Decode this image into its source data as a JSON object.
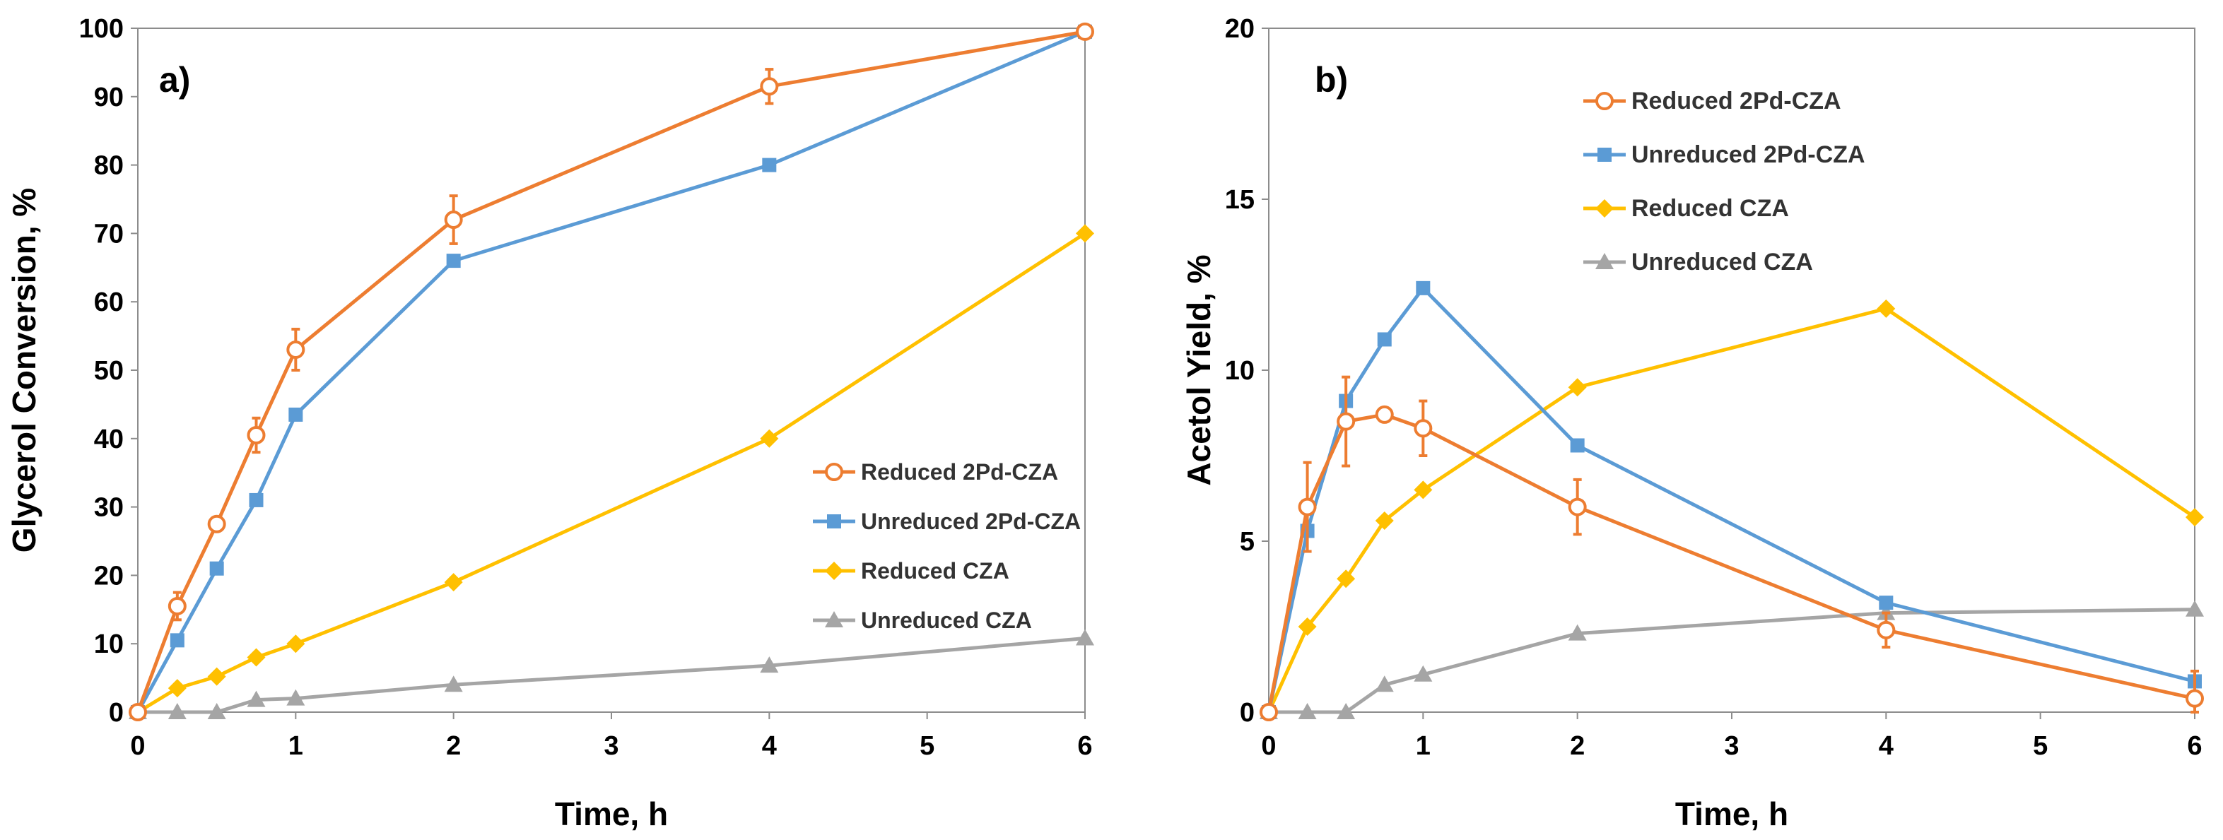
{
  "chart_data": [
    {
      "type": "line",
      "panel_label": "a)",
      "xlabel": "Time, h",
      "ylabel": "Glycerol Conversion, %",
      "xlim": [
        0,
        6
      ],
      "ylim": [
        0,
        100
      ],
      "xticks": [
        0,
        1,
        2,
        3,
        4,
        5,
        6
      ],
      "yticks": [
        0,
        10,
        20,
        30,
        40,
        50,
        60,
        70,
        80,
        90,
        100
      ],
      "grid": false,
      "legend_position": "bottom-right",
      "series": [
        {
          "name": "Reduced 2Pd-CZA",
          "color": "#ED7D31",
          "marker": "open-circle",
          "x": [
            0,
            0.25,
            0.5,
            0.75,
            1,
            2,
            4,
            6
          ],
          "y": [
            0,
            15.5,
            27.5,
            40.5,
            53,
            72,
            91.5,
            99.5
          ],
          "err": [
            0,
            2,
            1,
            2.5,
            3,
            3.5,
            2.5,
            0
          ]
        },
        {
          "name": "Unreduced 2Pd-CZA",
          "color": "#5B9BD5",
          "marker": "square",
          "x": [
            0,
            0.25,
            0.5,
            0.75,
            1,
            2,
            4,
            6
          ],
          "y": [
            0,
            10.5,
            21,
            31,
            43.5,
            66,
            80,
            99.5
          ]
        },
        {
          "name": "Reduced CZA",
          "color": "#FFC000",
          "marker": "diamond",
          "x": [
            0,
            0.25,
            0.5,
            0.75,
            1,
            2,
            4,
            6
          ],
          "y": [
            0,
            3.5,
            5.2,
            8,
            10,
            19,
            40,
            70
          ]
        },
        {
          "name": "Unreduced CZA",
          "color": "#A5A5A5",
          "marker": "triangle",
          "x": [
            0,
            0.25,
            0.5,
            0.75,
            1,
            2,
            4,
            6
          ],
          "y": [
            0,
            0,
            0,
            1.8,
            2,
            4,
            6.8,
            10.8
          ]
        }
      ]
    },
    {
      "type": "line",
      "panel_label": "b)",
      "xlabel": "Time, h",
      "ylabel": "Acetol Yield, %",
      "xlim": [
        0,
        6
      ],
      "ylim": [
        0,
        20
      ],
      "xticks": [
        0,
        1,
        2,
        3,
        4,
        5,
        6
      ],
      "yticks": [
        0,
        5,
        10,
        15,
        20
      ],
      "grid": false,
      "legend_position": "top-center",
      "series": [
        {
          "name": "Reduced 2Pd-CZA",
          "color": "#ED7D31",
          "marker": "open-circle",
          "x": [
            0,
            0.25,
            0.5,
            0.75,
            1,
            2,
            4,
            6
          ],
          "y": [
            0,
            6,
            8.5,
            8.7,
            8.3,
            6,
            2.4,
            0.4
          ],
          "err": [
            0,
            1.3,
            1.3,
            0.2,
            0.8,
            0.8,
            0.5,
            0.8
          ]
        },
        {
          "name": "Unreduced 2Pd-CZA",
          "color": "#5B9BD5",
          "marker": "square",
          "x": [
            0,
            0.25,
            0.5,
            0.75,
            1,
            2,
            4,
            6
          ],
          "y": [
            0,
            5.3,
            9.1,
            10.9,
            12.4,
            7.8,
            3.2,
            0.9
          ]
        },
        {
          "name": "Reduced CZA",
          "color": "#FFC000",
          "marker": "diamond",
          "x": [
            0,
            0.25,
            0.5,
            0.75,
            1,
            2,
            4,
            6
          ],
          "y": [
            0,
            2.5,
            3.9,
            5.6,
            6.5,
            9.5,
            11.8,
            5.7
          ]
        },
        {
          "name": "Unreduced CZA",
          "color": "#A5A5A5",
          "marker": "triangle",
          "x": [
            0,
            0.25,
            0.5,
            0.75,
            1,
            2,
            4,
            6
          ],
          "y": [
            0,
            0,
            0,
            0.8,
            1.1,
            2.3,
            2.9,
            3
          ]
        }
      ]
    }
  ]
}
